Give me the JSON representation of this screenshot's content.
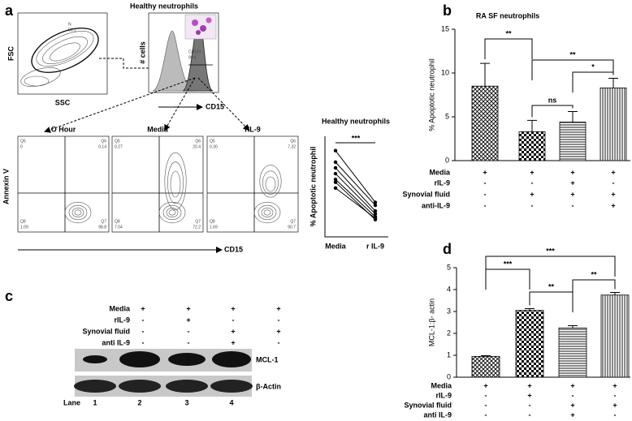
{
  "panel_a": {
    "label": "a",
    "title": "Healthy neutrophils",
    "scatter_plot": {
      "y_label": "FSC",
      "x_label": "SSC",
      "gate": "N",
      "gate_value": "58.1"
    },
    "histogram": {
      "y_label": "# cells",
      "x_label": "CD15",
      "gate": "CD15+",
      "gate_value": "99.6"
    },
    "y_label": "Annexin V",
    "x_label": "CD15",
    "quadrant_names": [
      "Q5",
      "Q6",
      "Q7",
      "Q8"
    ],
    "plots": [
      {
        "title": "O Hour",
        "quadrants": [
          "0",
          "0.14",
          "98.8",
          "1.09"
        ]
      },
      {
        "title": "Media",
        "quadrants": [
          "0.27",
          "20.4",
          "72.2",
          "7.04"
        ]
      },
      {
        "title": "rIL-9",
        "quadrants": [
          "0.30",
          "7.32",
          "90.7",
          "1.69"
        ]
      }
    ]
  },
  "panel_c": {
    "label": "c",
    "conditions": [
      {
        "label": "Media",
        "signs": [
          "+",
          "+",
          "+",
          "+"
        ]
      },
      {
        "label": "rIL-9",
        "signs": [
          "-",
          "+",
          "-",
          "-"
        ]
      },
      {
        "label": "Synovial fluid",
        "signs": [
          "-",
          "-",
          "+",
          "+"
        ]
      },
      {
        "label": "anti IL-9",
        "signs": [
          "-",
          "-",
          "+",
          "-"
        ]
      }
    ],
    "bands": [
      "MCL-1",
      "β-Actin"
    ],
    "lane_label": "Lane",
    "lanes": [
      "1",
      "2",
      "3",
      "4"
    ]
  },
  "chart_data": [
    {
      "type": "paired-line",
      "title": "Healthy neutrophils",
      "y_label": "% Apoptotic  neutrophil",
      "categories": [
        "Media",
        "r IL-9"
      ],
      "series": [
        {
          "values": [
            30,
            12
          ]
        },
        {
          "values": [
            26,
            11
          ]
        },
        {
          "values": [
            24,
            9
          ]
        },
        {
          "values": [
            22,
            8
          ]
        },
        {
          "values": [
            20,
            7
          ]
        },
        {
          "values": [
            19,
            6
          ]
        },
        {
          "values": [
            17,
            6.5
          ]
        }
      ],
      "ylim": [
        0,
        35
      ],
      "significance": "***",
      "color": "#000000"
    },
    {
      "type": "bar",
      "panel": "b",
      "title": "RA SF neutrophils",
      "y_label": "% Apoptotic neutrophil",
      "values": [
        8.5,
        3.3,
        4.4,
        8.3
      ],
      "errors": [
        2.6,
        1.3,
        1.2,
        1.1
      ],
      "ylim": [
        0,
        15
      ],
      "yticks": [
        0,
        5,
        10,
        15
      ],
      "patterns": [
        "crosshatch",
        "checker",
        "hlines",
        "vlines"
      ],
      "brackets": [
        {
          "text": "**",
          "between": [
            0,
            1
          ]
        },
        {
          "text": "**",
          "between": [
            1,
            3
          ]
        },
        {
          "text": "ns",
          "between": [
            1,
            2
          ]
        },
        {
          "text": "*",
          "between": [
            2,
            3
          ]
        }
      ],
      "conditions": [
        {
          "label": "Media",
          "signs": [
            "+",
            "+",
            "+",
            "+"
          ]
        },
        {
          "label": "rIL-9",
          "signs": [
            "-",
            "-",
            "+",
            "-"
          ]
        },
        {
          "label": "Synovial fluid",
          "signs": [
            "-",
            "+",
            "+",
            "+"
          ]
        },
        {
          "label": "anti-IL-9",
          "signs": [
            "-",
            "-",
            "-",
            "+"
          ]
        }
      ]
    },
    {
      "type": "bar",
      "panel": "d",
      "y_label": "MCL-1:β- actin",
      "values": [
        0.95,
        3.05,
        2.25,
        3.75
      ],
      "errors": [
        0.03,
        0.08,
        0.1,
        0.12
      ],
      "ylim": [
        0,
        5
      ],
      "yticks": [
        0,
        1,
        2,
        3,
        4,
        5
      ],
      "patterns": [
        "crosshatch",
        "checker",
        "hlines",
        "vlines"
      ],
      "brackets": [
        {
          "text": "***",
          "between": [
            0,
            1
          ]
        },
        {
          "text": "***",
          "between": [
            0,
            3
          ]
        },
        {
          "text": "**",
          "between": [
            1,
            2
          ]
        },
        {
          "text": "**",
          "between": [
            2,
            3
          ]
        }
      ],
      "conditions": [
        {
          "label": "Media",
          "signs": [
            "+",
            "+",
            "+",
            "+"
          ]
        },
        {
          "label": "rIL-9",
          "signs": [
            "-",
            "+",
            "-",
            "-"
          ]
        },
        {
          "label": "Synovial fluid",
          "signs": [
            "-",
            "-",
            "+",
            "+"
          ]
        },
        {
          "label": "anti IL-9",
          "signs": [
            "-",
            "-",
            "+",
            "-"
          ]
        }
      ]
    }
  ]
}
